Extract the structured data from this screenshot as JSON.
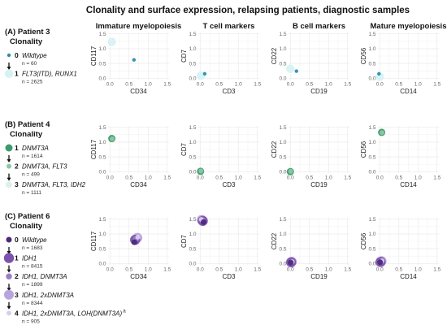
{
  "title": "Clonality and surface expression, relapsing patients, diagnostic samples",
  "column_titles": [
    "Immature myelopoiesis",
    "T cell markers",
    "B cell markers",
    "Mature myelopoiesis"
  ],
  "panels": [
    {
      "label": "(A) Patient 3",
      "legend_title": "Clonality",
      "clones": [
        {
          "index": "0",
          "label": "Wildtype",
          "italic": false,
          "n": "n = 60",
          "color": "#2a8fa6",
          "radius": 2.2
        },
        {
          "index": "1",
          "label": "FLT3(ITD), RUNX1",
          "italic": true,
          "n": "n = 2625",
          "color": "#d6f2f6",
          "radius": 5.2
        }
      ]
    },
    {
      "label": "(B) Patient 4",
      "legend_title": "Clonality",
      "clones": [
        {
          "index": "1",
          "label": "DNMT3A",
          "italic": true,
          "n": "n = 1614",
          "color": "#3e9a6d",
          "radius": 4.5
        },
        {
          "index": "2",
          "label": "DNMT3A, FLT3",
          "italic": true,
          "n": "n = 499",
          "color": "#8cc7a5",
          "radius": 3.0
        },
        {
          "index": "3",
          "label": "DNMT3A, FLT3, IDH2",
          "italic": true,
          "n": "n = 1111",
          "color": "#dff0e6",
          "radius": 4.0
        }
      ]
    },
    {
      "label": "(C) Patient 6",
      "legend_title": "Clonality",
      "clones": [
        {
          "index": "0",
          "label": "Wildtype",
          "italic": false,
          "n": "n = 1683",
          "color": "#4b2a7b",
          "radius": 3.5
        },
        {
          "index": "1",
          "label": "IDH1",
          "italic": true,
          "n": "n = 8415",
          "color": "#7d52ad",
          "radius": 6.2
        },
        {
          "index": "2",
          "label": "IDH1, DNMT3A",
          "italic": true,
          "n": "n = 1899",
          "color": "#9b7cc6",
          "radius": 3.7
        },
        {
          "index": "3",
          "label": "IDH1, 2xDNMT3A",
          "italic": true,
          "n": "n = 8344",
          "color": "#b9a3dd",
          "radius": 6.0
        },
        {
          "index": "4",
          "label": "IDH1, 2xDNMT3A, LOH(DNMT3A)",
          "italic": true,
          "superscript": "a",
          "n": "n = 905",
          "color": "#d8cdee",
          "radius": 3.0
        }
      ]
    }
  ],
  "chart_data": [
    {
      "type": "scatter",
      "panel": "(A) Patient 3",
      "column": "Immature myelopoiesis",
      "xlabel": "CD34",
      "ylabel": "CD117",
      "xlim": [
        0,
        1.5
      ],
      "ylim": [
        0,
        1.5
      ],
      "xticks": [
        "0.0",
        "0.5",
        "1.0",
        "1.5"
      ],
      "yticks": [
        "0.0",
        "0.5",
        "1.0",
        "1.5"
      ],
      "points": [
        {
          "clone": "1",
          "x": 0.05,
          "y": 1.23
        },
        {
          "clone": "0",
          "x": 0.63,
          "y": 0.62
        }
      ]
    },
    {
      "type": "scatter",
      "panel": "(A) Patient 3",
      "column": "T cell markers",
      "xlabel": "CD3",
      "ylabel": "CD7",
      "xlim": [
        0,
        1.5
      ],
      "ylim": [
        0,
        1.5
      ],
      "xticks": [
        "0.0",
        "0.5",
        "1.0",
        "1.5"
      ],
      "yticks": [
        "0.0",
        "0.5",
        "1.0",
        "1.5"
      ],
      "points": [
        {
          "clone": "1",
          "x": 0.02,
          "y": 0.08
        },
        {
          "clone": "0",
          "x": 0.12,
          "y": 0.15
        }
      ]
    },
    {
      "type": "scatter",
      "panel": "(A) Patient 3",
      "column": "B cell markers",
      "xlabel": "CD19",
      "ylabel": "CD22",
      "xlim": [
        0,
        1.5
      ],
      "ylim": [
        0,
        1.5
      ],
      "xticks": [
        "0.0",
        "0.5",
        "1.0",
        "1.5"
      ],
      "yticks": [
        "0.0",
        "0.5",
        "1.0",
        "1.5"
      ],
      "points": [
        {
          "clone": "1",
          "x": 0.0,
          "y": 0.32
        },
        {
          "clone": "0",
          "x": 0.16,
          "y": 0.24
        }
      ]
    },
    {
      "type": "scatter",
      "panel": "(A) Patient 3",
      "column": "Mature myelopoiesis",
      "xlabel": "CD14",
      "ylabel": "CD56",
      "xlim": [
        0,
        1.5
      ],
      "ylim": [
        0,
        1.5
      ],
      "xticks": [
        "0.0",
        "0.5",
        "1.0",
        "1.5"
      ],
      "yticks": [
        "0.0",
        "0.5",
        "1.0",
        "1.5"
      ],
      "points": [
        {
          "clone": "1",
          "x": 0.0,
          "y": 0.05
        },
        {
          "clone": "0",
          "x": -0.02,
          "y": 0.15
        }
      ]
    },
    {
      "type": "scatter",
      "panel": "(B) Patient 4",
      "column": "Immature myelopoiesis",
      "xlabel": "CD34",
      "ylabel": "CD117",
      "xlim": [
        0,
        1.5
      ],
      "ylim": [
        0,
        1.5
      ],
      "xticks": [
        "0.0",
        "0.5",
        "1.0",
        "1.5"
      ],
      "yticks": [
        "0.0",
        "0.5",
        "1.0",
        "1.5"
      ],
      "points": [
        {
          "clone": "3",
          "x": 0.06,
          "y": 1.12
        },
        {
          "clone": "1",
          "x": 0.05,
          "y": 1.12
        },
        {
          "clone": "2",
          "x": 0.06,
          "y": 1.11
        }
      ]
    },
    {
      "type": "scatter",
      "panel": "(B) Patient 4",
      "column": "T cell markers",
      "xlabel": "CD3",
      "ylabel": "CD7",
      "xlim": [
        0,
        1.5
      ],
      "ylim": [
        0,
        1.5
      ],
      "xticks": [
        "0.0",
        "0.5",
        "1.0",
        "1.5"
      ],
      "yticks": [
        "0.0",
        "0.5",
        "1.0",
        "1.5"
      ],
      "points": [
        {
          "clone": "3",
          "x": 0.02,
          "y": 0.02
        },
        {
          "clone": "1",
          "x": 0.01,
          "y": 0.01
        },
        {
          "clone": "2",
          "x": 0.02,
          "y": 0.02
        }
      ]
    },
    {
      "type": "scatter",
      "panel": "(B) Patient 4",
      "column": "B cell markers",
      "xlabel": "CD19",
      "ylabel": "CD22",
      "xlim": [
        0,
        1.5
      ],
      "ylim": [
        0,
        1.5
      ],
      "xticks": [
        "0.0",
        "0.5",
        "1.0",
        "1.5"
      ],
      "yticks": [
        "0.0",
        "0.5",
        "1.0",
        "1.5"
      ],
      "points": [
        {
          "clone": "3",
          "x": 0.01,
          "y": 0.01
        },
        {
          "clone": "1",
          "x": 0.0,
          "y": 0.0
        },
        {
          "clone": "2",
          "x": 0.01,
          "y": 0.01
        }
      ]
    },
    {
      "type": "scatter",
      "panel": "(B) Patient 4",
      "column": "Mature myelopoiesis",
      "xlabel": "CD14",
      "ylabel": "CD56",
      "xlim": [
        0,
        1.5
      ],
      "ylim": [
        0,
        1.5
      ],
      "xticks": [
        "0.0",
        "0.5",
        "1.0",
        "1.5"
      ],
      "yticks": [
        "0.0",
        "0.5",
        "1.0",
        "1.5"
      ],
      "points": [
        {
          "clone": "3",
          "x": 0.06,
          "y": 1.32
        },
        {
          "clone": "1",
          "x": 0.05,
          "y": 1.33
        },
        {
          "clone": "2",
          "x": 0.06,
          "y": 1.32
        }
      ]
    },
    {
      "type": "scatter",
      "panel": "(C) Patient 6",
      "column": "Immature myelopoiesis",
      "xlabel": "CD34",
      "ylabel": "CD117",
      "xlim": [
        0,
        1.5
      ],
      "ylim": [
        0,
        1.5
      ],
      "xticks": [
        "0.0",
        "0.5",
        "1.0",
        "1.5"
      ],
      "yticks": [
        "0.0",
        "0.5",
        "1.0",
        "1.5"
      ],
      "points": [
        {
          "clone": "3",
          "x": 0.72,
          "y": 0.87
        },
        {
          "clone": "1",
          "x": 0.66,
          "y": 0.8
        },
        {
          "clone": "2",
          "x": 0.68,
          "y": 0.83
        },
        {
          "clone": "4",
          "x": 0.73,
          "y": 0.89
        },
        {
          "clone": "0",
          "x": 0.64,
          "y": 0.72
        }
      ]
    },
    {
      "type": "scatter",
      "panel": "(C) Patient 6",
      "column": "T cell markers",
      "xlabel": "CD3",
      "ylabel": "CD7",
      "xlim": [
        0,
        1.5
      ],
      "ylim": [
        0,
        1.5
      ],
      "xticks": [
        "0.0",
        "0.5",
        "1.0",
        "1.5"
      ],
      "yticks": [
        "0.0",
        "0.5",
        "1.0",
        "1.5"
      ],
      "points": [
        {
          "clone": "3",
          "x": 0.04,
          "y": 1.48
        },
        {
          "clone": "1",
          "x": 0.07,
          "y": 1.44
        },
        {
          "clone": "2",
          "x": 0.06,
          "y": 1.46
        },
        {
          "clone": "4",
          "x": 0.03,
          "y": 1.49
        },
        {
          "clone": "0",
          "x": 0.09,
          "y": 1.4
        }
      ]
    },
    {
      "type": "scatter",
      "panel": "(C) Patient 6",
      "column": "B cell markers",
      "xlabel": "CD19",
      "ylabel": "CD22",
      "xlim": [
        0,
        1.5
      ],
      "ylim": [
        0,
        1.5
      ],
      "xticks": [
        "0.0",
        "0.5",
        "1.0",
        "1.5"
      ],
      "yticks": [
        "0.0",
        "0.5",
        "1.0",
        "1.5"
      ],
      "points": [
        {
          "clone": "3",
          "x": 0.04,
          "y": 0.06
        },
        {
          "clone": "1",
          "x": 0.02,
          "y": 0.04
        },
        {
          "clone": "2",
          "x": 0.03,
          "y": 0.05
        },
        {
          "clone": "4",
          "x": 0.05,
          "y": 0.06
        },
        {
          "clone": "0",
          "x": 0.01,
          "y": 0.03
        }
      ]
    },
    {
      "type": "scatter",
      "panel": "(C) Patient 6",
      "column": "Mature myelopoiesis",
      "xlabel": "CD14",
      "ylabel": "CD56",
      "xlim": [
        0,
        1.5
      ],
      "ylim": [
        0,
        1.5
      ],
      "xticks": [
        "0.0",
        "0.5",
        "1.0",
        "1.5"
      ],
      "yticks": [
        "0.0",
        "0.5",
        "1.0",
        "1.5"
      ],
      "points": [
        {
          "clone": "3",
          "x": 0.05,
          "y": 0.08
        },
        {
          "clone": "1",
          "x": 0.02,
          "y": 0.05
        },
        {
          "clone": "2",
          "x": 0.03,
          "y": 0.06
        },
        {
          "clone": "4",
          "x": 0.06,
          "y": 0.09
        },
        {
          "clone": "0",
          "x": 0.01,
          "y": 0.04
        }
      ]
    }
  ]
}
